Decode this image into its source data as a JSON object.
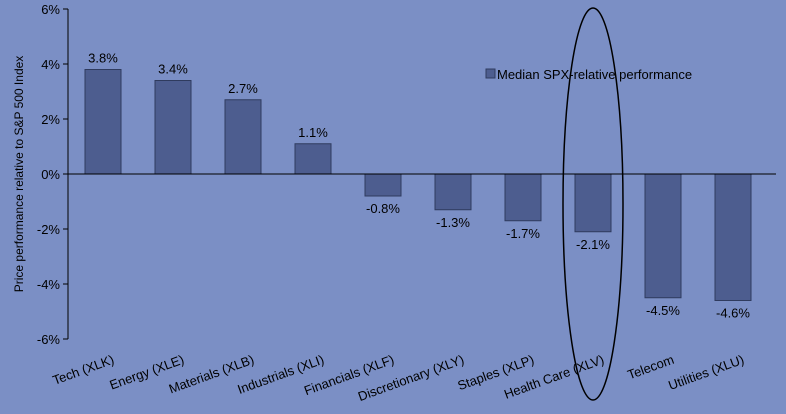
{
  "chart_data": {
    "type": "bar",
    "categories": [
      "Tech (XLK)",
      "Energy (XLE)",
      "Materials (XLB)",
      "Industrials (XLI)",
      "Financials (XLF)",
      "Discretionary (XLY)",
      "Staples (XLP)",
      "Health Care (XLV)",
      "Telecom",
      "Utilities (XLU)"
    ],
    "series": [
      {
        "name": "Median SPX-relative performance",
        "values": [
          3.8,
          3.4,
          2.7,
          1.1,
          -0.8,
          -1.3,
          -1.7,
          -2.1,
          -4.5,
          -4.6
        ],
        "data_labels": [
          "3.8%",
          "3.4%",
          "2.7%",
          "1.1%",
          "-0.8%",
          "-1.3%",
          "-1.7%",
          "-2.1%",
          "-4.5%",
          "-4.6%"
        ]
      }
    ],
    "title": "",
    "xlabel": "",
    "ylabel": "Price performance relative to S&P 500 Index",
    "ylim": [
      -6,
      6
    ],
    "yticks": [
      6,
      4,
      2,
      0,
      -2,
      -4,
      -6
    ],
    "ytick_labels": [
      "6%",
      "4%",
      "2%",
      "0%",
      "-2%",
      "-4%",
      "-6%"
    ],
    "highlighted_category": "Health Care (XLV)",
    "legend_position": "top-right",
    "grid": false,
    "colors": {
      "background": "#7b8fc5",
      "bar_fill": "#4d5d8f",
      "bar_stroke": "#2f3b5e",
      "axis": "#000000"
    }
  }
}
